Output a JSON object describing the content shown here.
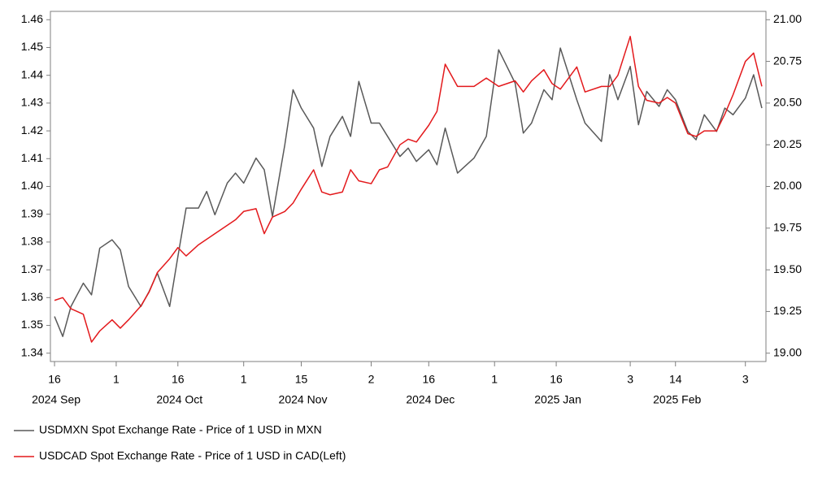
{
  "chart_data": {
    "type": "line",
    "x": [
      "2024-09-16",
      "2024-09-18",
      "2024-09-20",
      "2024-09-23",
      "2024-09-25",
      "2024-09-27",
      "2024-09-30",
      "2024-10-02",
      "2024-10-04",
      "2024-10-07",
      "2024-10-09",
      "2024-10-11",
      "2024-10-14",
      "2024-10-16",
      "2024-10-18",
      "2024-10-21",
      "2024-10-23",
      "2024-10-25",
      "2024-10-28",
      "2024-10-30",
      "2024-11-01",
      "2024-11-04",
      "2024-11-06",
      "2024-11-08",
      "2024-11-11",
      "2024-11-13",
      "2024-11-15",
      "2024-11-18",
      "2024-11-20",
      "2024-11-22",
      "2024-11-25",
      "2024-11-27",
      "2024-11-29",
      "2024-12-02",
      "2024-12-04",
      "2024-12-06",
      "2024-12-09",
      "2024-12-11",
      "2024-12-13",
      "2024-12-16",
      "2024-12-18",
      "2024-12-20",
      "2024-12-23",
      "2024-12-27",
      "2024-12-30",
      "2025-01-02",
      "2025-01-06",
      "2025-01-08",
      "2025-01-10",
      "2025-01-13",
      "2025-01-15",
      "2025-01-17",
      "2025-01-21",
      "2025-01-23",
      "2025-01-27",
      "2025-01-29",
      "2025-01-31",
      "2025-02-03",
      "2025-02-05",
      "2025-02-07",
      "2025-02-10",
      "2025-02-12",
      "2025-02-14",
      "2025-02-17",
      "2025-02-19",
      "2025-02-21",
      "2025-02-24",
      "2025-02-26",
      "2025-02-28",
      "2025-03-03",
      "2025-03-05",
      "2025-03-07"
    ],
    "series": [
      {
        "name": "USDMXN Spot Exchange Rate - Price of 1 USD in MXN",
        "color": "#595959",
        "axis": "y2",
        "values": [
          19.22,
          19.1,
          19.28,
          19.42,
          19.35,
          19.63,
          19.68,
          19.62,
          19.4,
          19.28,
          19.37,
          19.48,
          19.28,
          19.58,
          19.87,
          19.87,
          19.97,
          19.83,
          20.02,
          20.08,
          20.02,
          20.17,
          20.1,
          19.82,
          20.25,
          20.58,
          20.47,
          20.35,
          20.12,
          20.3,
          20.42,
          20.3,
          20.63,
          20.38,
          20.38,
          20.3,
          20.18,
          20.23,
          20.15,
          20.22,
          20.13,
          20.35,
          20.08,
          20.17,
          20.3,
          20.82,
          20.62,
          20.32,
          20.38,
          20.58,
          20.52,
          20.83,
          20.52,
          20.38,
          20.27,
          20.67,
          20.52,
          20.72,
          20.37,
          20.57,
          20.48,
          20.58,
          20.52,
          20.33,
          20.28,
          20.43,
          20.33,
          20.47,
          20.43,
          20.53,
          20.67,
          20.47
        ]
      },
      {
        "name": "USDCAD Spot Exchange Rate - Price of 1 USD in CAD(Left)",
        "color": "#e3191c",
        "axis": "y",
        "values": [
          1.359,
          1.36,
          1.356,
          1.354,
          1.344,
          1.348,
          1.352,
          1.349,
          1.352,
          1.357,
          1.362,
          1.369,
          1.374,
          1.378,
          1.375,
          1.379,
          1.381,
          1.383,
          1.386,
          1.388,
          1.391,
          1.392,
          1.383,
          1.389,
          1.391,
          1.394,
          1.399,
          1.406,
          1.398,
          1.397,
          1.398,
          1.406,
          1.402,
          1.401,
          1.406,
          1.407,
          1.415,
          1.417,
          1.416,
          1.422,
          1.427,
          1.444,
          1.436,
          1.436,
          1.439,
          1.436,
          1.438,
          1.434,
          1.438,
          1.442,
          1.437,
          1.435,
          1.443,
          1.434,
          1.436,
          1.436,
          1.44,
          1.454,
          1.436,
          1.431,
          1.43,
          1.432,
          1.43,
          1.419,
          1.418,
          1.42,
          1.42,
          1.426,
          1.433,
          1.445,
          1.448,
          1.436
        ]
      }
    ],
    "xlim": [
      "2024-09-15",
      "2025-03-08"
    ],
    "xticks": [
      {
        "value": "2024-09-16",
        "label": "16"
      },
      {
        "value": "2024-10-01",
        "label": "1"
      },
      {
        "value": "2024-10-16",
        "label": "16"
      },
      {
        "value": "2024-11-01",
        "label": "1"
      },
      {
        "value": "2024-11-15",
        "label": "15"
      },
      {
        "value": "2024-12-02",
        "label": "2"
      },
      {
        "value": "2024-12-16",
        "label": "16"
      },
      {
        "value": "2025-01-01",
        "label": "1"
      },
      {
        "value": "2025-01-16",
        "label": "16"
      },
      {
        "value": "2025-02-03",
        "label": "3"
      },
      {
        "value": "2025-02-14",
        "label": "14"
      },
      {
        "value": "2025-03-03",
        "label": "3"
      }
    ],
    "xtick_groups": [
      {
        "value": "2024-09-16",
        "label": "2024 Sep"
      },
      {
        "value": "2024-10-16",
        "label": "2024 Oct"
      },
      {
        "value": "2024-11-15",
        "label": "2024 Nov"
      },
      {
        "value": "2024-12-16",
        "label": "2024 Dec"
      },
      {
        "value": "2025-01-16",
        "label": "2025 Jan"
      },
      {
        "value": "2025-02-14",
        "label": "2025 Feb"
      }
    ],
    "ylim": [
      1.337,
      1.463
    ],
    "yticks": [
      1.34,
      1.35,
      1.36,
      1.37,
      1.38,
      1.39,
      {
        "value": 1.4,
        "label": "1.40"
      },
      1.41,
      1.42,
      1.43,
      1.44,
      1.45,
      1.46
    ],
    "y2lim": [
      18.95,
      21.05
    ],
    "y2ticks": [
      {
        "value": 19,
        "label": "19.00"
      },
      {
        "value": 19.25,
        "label": "19.25"
      },
      {
        "value": 19.5,
        "label": "19.50"
      },
      {
        "value": 19.75,
        "label": "19.75"
      },
      {
        "value": 20,
        "label": "20.00"
      },
      {
        "value": 20.25,
        "label": "20.25"
      },
      {
        "value": 20.5,
        "label": "20.50"
      },
      {
        "value": 20.75,
        "label": "20.75"
      },
      {
        "value": 21,
        "label": "21.00"
      }
    ],
    "grid": false,
    "legend": "bottom-left"
  }
}
